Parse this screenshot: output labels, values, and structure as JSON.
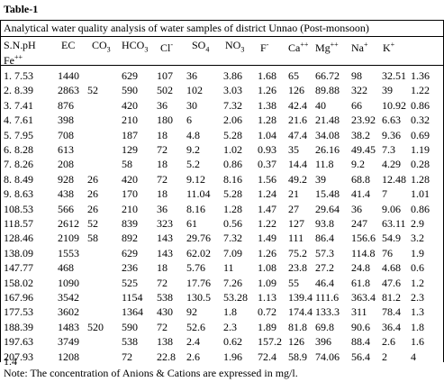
{
  "header": {
    "title": "Table-1",
    "subtitle": "Analytical water quality analysis of water samples of district Unnao (Post-monsoon)"
  },
  "table": {
    "columns": [
      "S.N.",
      "pH",
      "EC",
      "CO",
      "HCO",
      "Cl",
      "SO",
      "NO",
      "F",
      "Ca",
      "Mg",
      "Na",
      "K",
      "Fe"
    ],
    "column_marks": [
      null,
      null,
      null,
      "3",
      "3",
      "-",
      "4",
      "3",
      "-",
      "++",
      "++",
      "+",
      "+",
      "++"
    ],
    "column_mark_styles": [
      null,
      null,
      null,
      "sub--",
      "sub-",
      "sup",
      "sub--",
      "sub-",
      "sup",
      "sup",
      "sup",
      "sup",
      "sup",
      "sup"
    ],
    "rows": [
      [
        "1.",
        "7.53",
        "1440",
        null,
        "629",
        "107",
        "36",
        "3.86",
        "1.68",
        "65",
        "66.72",
        "98",
        "32.51",
        "1.36"
      ],
      [
        "2.",
        "8.39",
        "2863",
        "52",
        "590",
        "502",
        "102",
        "3.03",
        "1.26",
        "126",
        "89.88",
        "322",
        "39",
        "1.22"
      ],
      [
        "3.",
        "7.41",
        "876",
        null,
        "420",
        "36",
        "30",
        "7.32",
        "1.38",
        "42.4",
        "40",
        "66",
        "10.92",
        "0.86"
      ],
      [
        "4.",
        "7.61",
        "398",
        null,
        "210",
        "180",
        "6",
        "2.06",
        "1.28",
        "21.6",
        "21.48",
        "23.92",
        "6.63",
        "0.32"
      ],
      [
        "5.",
        "7.95",
        "708",
        null,
        "187",
        "18",
        "4.8",
        "5.28",
        "1.04",
        "47.4",
        "34.08",
        "38.2",
        "9.36",
        "0.69"
      ],
      [
        "6.",
        "8.28",
        "613",
        null,
        "129",
        "72",
        "9.2",
        "1.02",
        "0.93",
        "35",
        "26.16",
        "49.45",
        "7.3",
        "1.19"
      ],
      [
        "7.",
        "8.26",
        "208",
        null,
        "58",
        "18",
        "5.2",
        "0.86",
        "0.37",
        "14.4",
        "11.8",
        "9.2",
        "4.29",
        "0.28"
      ],
      [
        "8.",
        "8.49",
        "928",
        "26",
        "420",
        "72",
        "9.12",
        "8.16",
        "1.56",
        "49.2",
        "39",
        "68.8",
        "12.48",
        "1.28"
      ],
      [
        "9.",
        "8.63",
        "438",
        "26",
        "170",
        "18",
        "11.04",
        "5.28",
        "1.24",
        "21",
        "15.48",
        "41.4",
        "7",
        "1.01"
      ],
      [
        "10.",
        "8.53",
        "566",
        "26",
        "210",
        "36",
        "8.16",
        "1.28",
        "1.47",
        "27",
        "29.64",
        "36",
        "9.06",
        "0.86"
      ],
      [
        "11.",
        "8.57",
        "2612",
        "52",
        "839",
        "323",
        "61",
        "0.56",
        "1.22",
        "127",
        "93.8",
        "247",
        "63.11",
        "2.9"
      ],
      [
        "12.",
        "8.46",
        "2109",
        "58",
        "892",
        "143",
        "29.76",
        "7.32",
        "1.49",
        "111",
        "86.4",
        "156.6",
        "54.9",
        "3.2"
      ],
      [
        "13.",
        "8.09",
        "1553",
        null,
        "629",
        "143",
        "62.02",
        "7.09",
        "1.26",
        "75.2",
        "57.3",
        "114.8",
        "76",
        "1.9"
      ],
      [
        "14.",
        "7.77",
        "468",
        null,
        "236",
        "18",
        "5.76",
        "11",
        "1.08",
        "23.8",
        "27.2",
        "24.8",
        "4.68",
        "0.6"
      ],
      [
        "15.",
        "8.02",
        "1090",
        null,
        "525",
        "72",
        "17.76",
        "7.26",
        "1.09",
        "55",
        "46.4",
        "61.8",
        "47.6",
        "1.2"
      ],
      [
        "16.",
        "7.96",
        "3542",
        null,
        "1154",
        "538",
        "130.5",
        "53.28",
        "1.13",
        "139.4",
        "111.6",
        "363.4",
        "81.2",
        "2.3"
      ],
      [
        "17.",
        "7.53",
        "3602",
        null,
        "1364",
        "430",
        "92",
        "1.8",
        "0.72",
        "174.4",
        "133.3",
        "311",
        "78.4",
        "1.3"
      ],
      [
        "18.",
        "8.39",
        "1483",
        "520",
        "590",
        "72",
        "52.6",
        "2.3",
        "1.89",
        "81.8",
        "69.8",
        "90.6",
        "36.4",
        "1.8"
      ],
      [
        "19.",
        "7.63",
        "3749",
        null,
        "538",
        "138",
        "2.4",
        "0.62",
        "157.2",
        "126",
        "396",
        "88.4",
        "2.6",
        "1.6"
      ],
      [
        "20",
        "7.93",
        "1208",
        null,
        "72",
        "22.8",
        "2.6",
        "1.96",
        "72.4",
        "58.9",
        "74.06",
        "56.4",
        "2",
        "4"
      ]
    ],
    "wrapped_value": "1.4"
  },
  "note": "Note:  The concentration of Anions & Cations are expressed in mg/l."
}
